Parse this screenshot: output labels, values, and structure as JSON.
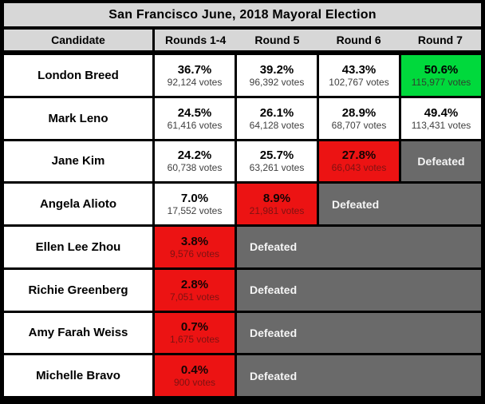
{
  "chart_data": {
    "type": "table",
    "title": "San Francisco June, 2018 Mayoral Election",
    "columns": [
      "Candidate",
      "Rounds 1-4",
      "Round 5",
      "Round 6",
      "Round 7"
    ],
    "defeated_label": "Defeated",
    "colors": {
      "winner_green": "#00d93c",
      "eliminated_red": "#ec1313",
      "defeated_gray": "#6a6a6a",
      "header_gray": "#d7d7d7",
      "border_black": "#000000"
    },
    "rows": [
      {
        "candidate": "London Breed",
        "cells": [
          {
            "status": "normal",
            "pct": "36.7%",
            "votes": "92,124 votes"
          },
          {
            "status": "normal",
            "pct": "39.2%",
            "votes": "96,392 votes"
          },
          {
            "status": "normal",
            "pct": "43.3%",
            "votes": "102,767 votes"
          },
          {
            "status": "win",
            "pct": "50.6%",
            "votes": "115,977 votes"
          }
        ]
      },
      {
        "candidate": "Mark Leno",
        "cells": [
          {
            "status": "normal",
            "pct": "24.5%",
            "votes": "61,416 votes"
          },
          {
            "status": "normal",
            "pct": "26.1%",
            "votes": "64,128 votes"
          },
          {
            "status": "normal",
            "pct": "28.9%",
            "votes": "68,707 votes"
          },
          {
            "status": "normal",
            "pct": "49.4%",
            "votes": "113,431 votes"
          }
        ]
      },
      {
        "candidate": "Jane Kim",
        "cells": [
          {
            "status": "normal",
            "pct": "24.2%",
            "votes": "60,738 votes"
          },
          {
            "status": "normal",
            "pct": "25.7%",
            "votes": "63,261 votes"
          },
          {
            "status": "eliminated",
            "pct": "27.8%",
            "votes": "66,043 votes"
          },
          {
            "status": "defeated",
            "span": 1,
            "align": "center"
          }
        ]
      },
      {
        "candidate": "Angela Alioto",
        "cells": [
          {
            "status": "normal",
            "pct": "7.0%",
            "votes": "17,552 votes"
          },
          {
            "status": "eliminated",
            "pct": "8.9%",
            "votes": "21,981 votes"
          },
          {
            "status": "defeated",
            "span": 2,
            "align": "left"
          }
        ]
      },
      {
        "candidate": "Ellen Lee Zhou",
        "cells": [
          {
            "status": "eliminated",
            "pct": "3.8%",
            "votes": "9,576 votes"
          },
          {
            "status": "defeated",
            "span": 3,
            "align": "left"
          }
        ]
      },
      {
        "candidate": "Richie Greenberg",
        "cells": [
          {
            "status": "eliminated",
            "pct": "2.8%",
            "votes": "7,051 votes"
          },
          {
            "status": "defeated",
            "span": 3,
            "align": "left"
          }
        ]
      },
      {
        "candidate": "Amy Farah Weiss",
        "cells": [
          {
            "status": "eliminated",
            "pct": "0.7%",
            "votes": "1,675 votes"
          },
          {
            "status": "defeated",
            "span": 3,
            "align": "left"
          }
        ]
      },
      {
        "candidate": "Michelle Bravo",
        "cells": [
          {
            "status": "eliminated",
            "pct": "0.4%",
            "votes": "900 votes"
          },
          {
            "status": "defeated",
            "span": 3,
            "align": "left"
          }
        ]
      }
    ]
  }
}
